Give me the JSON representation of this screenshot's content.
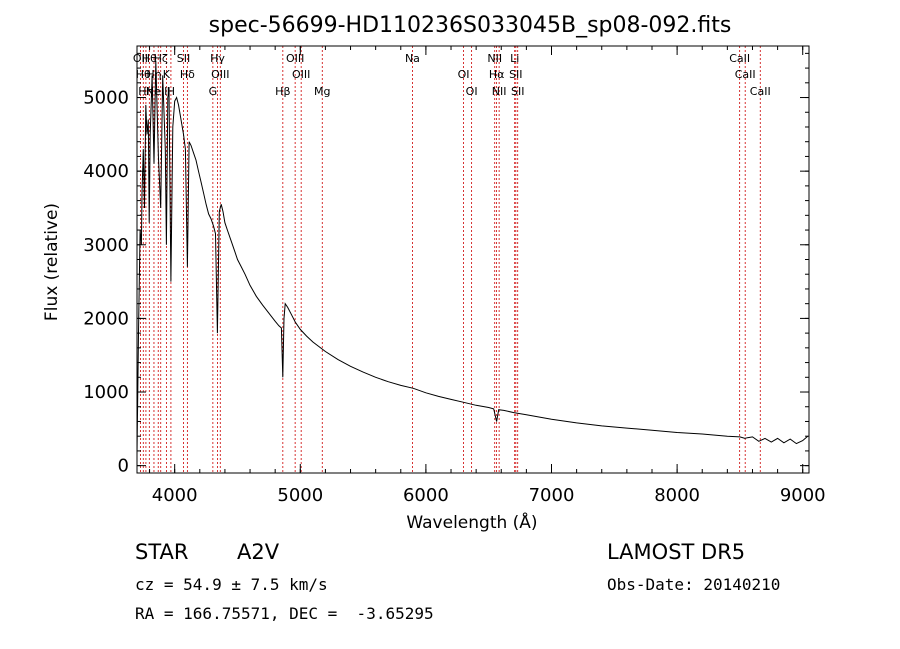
{
  "chart_data": {
    "type": "line",
    "title": "spec-56699-HD110236S033045B_sp08-092.fits",
    "xlabel": "Wavelength (Å)",
    "ylabel": "Flux (relative)",
    "xlim": [
      3700,
      9050
    ],
    "ylim": [
      -100,
      5700
    ],
    "xticks": [
      4000,
      5000,
      6000,
      7000,
      8000,
      9000
    ],
    "xtick_labels": [
      "4000",
      "5000",
      "6000",
      "7000",
      "8000",
      "9000"
    ],
    "yticks": [
      0,
      1000,
      2000,
      3000,
      4000,
      5000
    ],
    "ytick_labels": [
      "0",
      "1000",
      "2000",
      "3000",
      "4000",
      "5000"
    ],
    "grid": false,
    "series": [
      {
        "x": [
          3700,
          3712,
          3725,
          3735,
          3740,
          3750,
          3760,
          3770,
          3780,
          3790,
          3797,
          3805,
          3820,
          3835,
          3850,
          3870,
          3889,
          3905,
          3925,
          3934,
          3945,
          3955,
          3970,
          3985,
          4000,
          4015,
          4030,
          4050,
          4070,
          4085,
          4101,
          4115,
          4130,
          4150,
          4170,
          4190,
          4210,
          4230,
          4250,
          4270,
          4290,
          4310,
          4325,
          4340,
          4355,
          4370,
          4385,
          4400,
          4420,
          4450,
          4480,
          4500,
          4530,
          4560,
          4600,
          4650,
          4700,
          4750,
          4800,
          4830,
          4850,
          4861,
          4870,
          4880,
          4900,
          4930,
          4960,
          5000,
          5050,
          5100,
          5200,
          5300,
          5400,
          5500,
          5600,
          5700,
          5800,
          5900,
          6000,
          6100,
          6200,
          6300,
          6400,
          6500,
          6540,
          6563,
          6580,
          6620,
          6700,
          6800,
          6900,
          7000,
          7200,
          7400,
          7600,
          7800,
          8000,
          8200,
          8400,
          8500,
          8540,
          8560,
          8600,
          8650,
          8700,
          8750,
          8800,
          8850,
          8900,
          8950,
          9000,
          9040
        ],
        "y": [
          150,
          1800,
          3200,
          3000,
          3700,
          4300,
          3500,
          4900,
          4500,
          4700,
          3300,
          4500,
          5300,
          4100,
          5500,
          4200,
          3500,
          5300,
          4300,
          3000,
          5000,
          5100,
          2500,
          4600,
          4950,
          5000,
          4900,
          4700,
          4500,
          4300,
          2700,
          4400,
          4350,
          4250,
          4150,
          4000,
          3850,
          3700,
          3550,
          3420,
          3350,
          3250,
          3150,
          1800,
          3450,
          3550,
          3450,
          3300,
          3200,
          3050,
          2900,
          2800,
          2700,
          2600,
          2450,
          2300,
          2180,
          2070,
          1960,
          1900,
          1870,
          1200,
          2000,
          2200,
          2150,
          2050,
          1950,
          1850,
          1760,
          1680,
          1550,
          1440,
          1350,
          1270,
          1200,
          1140,
          1090,
          1050,
          990,
          940,
          900,
          860,
          820,
          790,
          770,
          600,
          760,
          750,
          720,
          690,
          660,
          630,
          580,
          540,
          510,
          480,
          450,
          430,
          400,
          390,
          370,
          380,
          390,
          330,
          370,
          320,
          370,
          310,
          360,
          300,
          340,
          400
        ]
      }
    ],
    "lines": [
      {
        "x": 3727,
        "labels": [
          "OII"
        ]
      },
      {
        "x": 3750,
        "labels": [
          "Hθ"
        ]
      },
      {
        "x": 3771,
        "labels": [
          "Hη"
        ]
      },
      {
        "x": 3798,
        "labels": [
          "Hθ"
        ]
      },
      {
        "x": 3835,
        "labels": [
          "Hη"
        ]
      },
      {
        "x": 3869,
        "labels": [
          "NeIII"
        ]
      },
      {
        "x": 3889,
        "labels": [
          "Hζ"
        ]
      },
      {
        "x": 3934,
        "labels": [
          "K"
        ]
      },
      {
        "x": 3970,
        "labels": [
          "H"
        ]
      },
      {
        "x": 4070,
        "labels": [
          "SII"
        ]
      },
      {
        "x": 4101,
        "labels": [
          "Hδ"
        ]
      },
      {
        "x": 4304,
        "labels": [
          "G"
        ]
      },
      {
        "x": 4341,
        "labels": [
          "Hγ"
        ]
      },
      {
        "x": 4363,
        "labels": [
          "OIII"
        ]
      },
      {
        "x": 4861,
        "labels": [
          "Hβ"
        ]
      },
      {
        "x": 4959,
        "labels": [
          "OIII"
        ]
      },
      {
        "x": 5007,
        "labels": [
          "OIII"
        ]
      },
      {
        "x": 5175,
        "labels": [
          "Mg"
        ]
      },
      {
        "x": 5893,
        "labels": [
          "Na"
        ]
      },
      {
        "x": 6300,
        "labels": [
          "OI"
        ]
      },
      {
        "x": 6364,
        "labels": [
          "OI"
        ]
      },
      {
        "x": 6548,
        "labels": [
          "NII"
        ]
      },
      {
        "x": 6563,
        "labels": [
          "Hα"
        ]
      },
      {
        "x": 6583,
        "labels": [
          "NII"
        ]
      },
      {
        "x": 6707,
        "labels": [
          "Li"
        ]
      },
      {
        "x": 6716,
        "labels": [
          "SII"
        ]
      },
      {
        "x": 6731,
        "labels": [
          "SII"
        ]
      },
      {
        "x": 8498,
        "labels": [
          "CaII"
        ]
      },
      {
        "x": 8542,
        "labels": [
          "CaII"
        ]
      },
      {
        "x": 8662,
        "labels": [
          "CaII"
        ]
      }
    ],
    "line_color": "#000000",
    "marker_line_color": "#cc0000"
  },
  "info": {
    "object_type": "STAR",
    "subclass": "A2V",
    "survey": "LAMOST DR5",
    "cz": "cz = 54.9 ± 7.5 km/s",
    "obs_date": "Obs-Date: 20140210",
    "coords": "RA = 166.75571, DEC =  -3.65295"
  }
}
